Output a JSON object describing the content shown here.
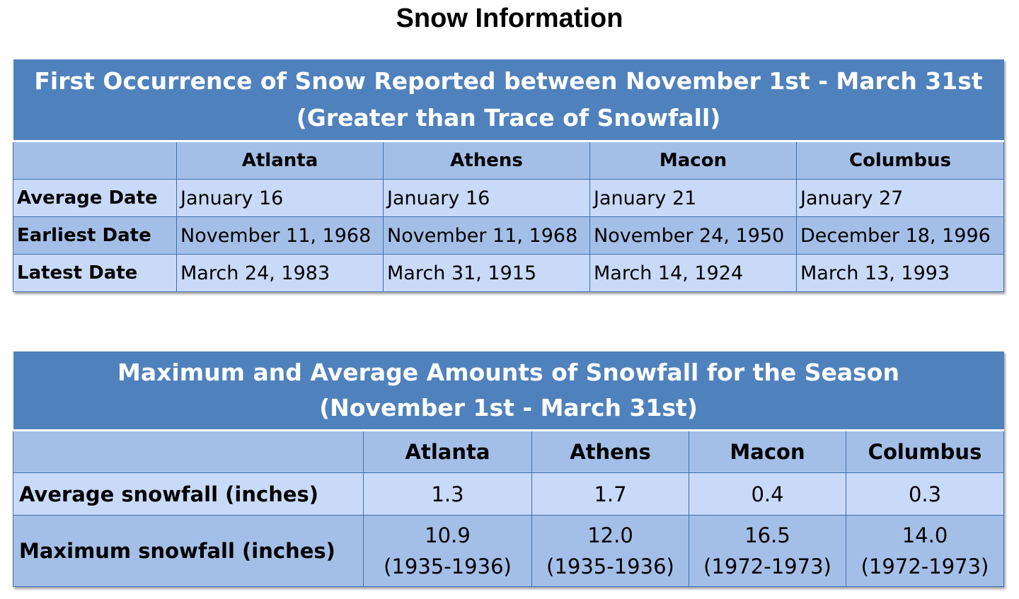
{
  "page_title": "Snow Information",
  "first_occurrence": {
    "title_line1": "First Occurrence of Snow Reported between November 1st - March 31st",
    "title_line2": "(Greater than Trace of Snowfall)",
    "columns": [
      "",
      "Atlanta",
      "Athens",
      "Macon",
      "Columbus"
    ],
    "rows": [
      {
        "label": "Average Date",
        "values": [
          "January 16",
          "January 16",
          "January 21",
          "January 27"
        ]
      },
      {
        "label": "Earliest Date",
        "values": [
          "November 11, 1968",
          "November 11, 1968",
          "November 24, 1950",
          "December 18, 1996"
        ]
      },
      {
        "label": "Latest Date",
        "values": [
          "March 24, 1983",
          "March 31, 1915",
          "March 14, 1924",
          "March 13, 1993"
        ]
      }
    ]
  },
  "snowfall_amounts": {
    "title_line1": "Maximum and Average Amounts of Snowfall for the Season",
    "title_line2": "(November 1st - March 31st)",
    "columns": [
      "",
      "Atlanta",
      "Athens",
      "Macon",
      "Columbus"
    ],
    "average": {
      "label": "Average snowfall (inches)",
      "values": [
        "1.3",
        "1.7",
        "0.4",
        "0.3"
      ]
    },
    "maximum": {
      "label": "Maximum snowfall (inches)",
      "values": [
        {
          "amount": "10.9",
          "season": "(1935-1936)"
        },
        {
          "amount": "12.0",
          "season": "(1935-1936)"
        },
        {
          "amount": "16.5",
          "season": "(1972-1973)"
        },
        {
          "amount": "14.0",
          "season": "(1972-1973)"
        }
      ]
    }
  },
  "colors": {
    "banner": "#4f81bd",
    "header_cell": "#a4bfe7",
    "light_row": "#c9daf8",
    "border": "#3f6fae"
  }
}
